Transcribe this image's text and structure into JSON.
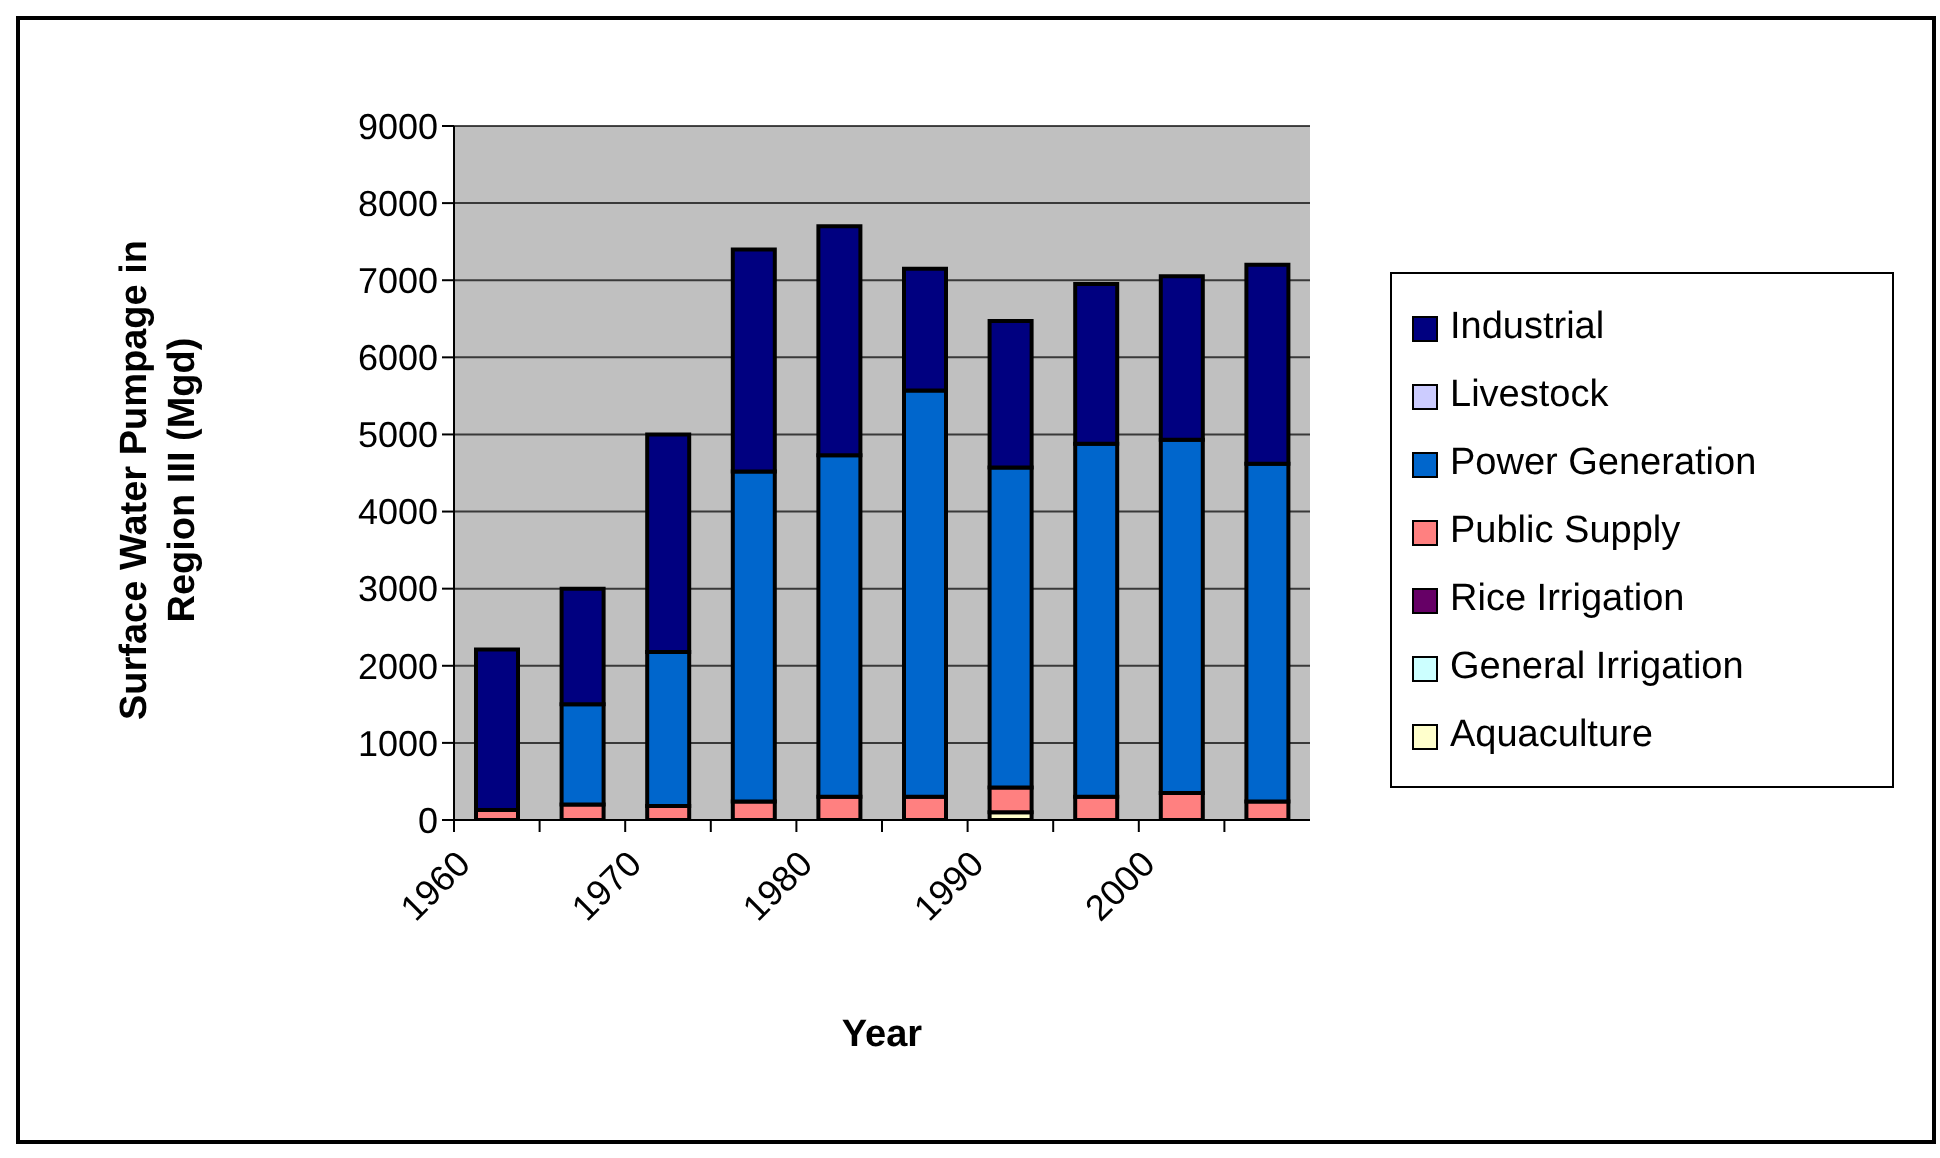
{
  "chart_data": {
    "type": "bar",
    "stacked": true,
    "xlabel": "Year",
    "ylabel": "Surface Water Pumpage in Region III (Mgd)",
    "categories": [
      "1960",
      null,
      "1970",
      null,
      "1980",
      null,
      "1990",
      null,
      "2000",
      null
    ],
    "series": [
      {
        "name": "Aquaculture",
        "color": "#ffffcc",
        "values": [
          0,
          0,
          0,
          0,
          0,
          0,
          100,
          0,
          0,
          0
        ]
      },
      {
        "name": "General Irrigation",
        "color": "#ccffff",
        "values": [
          0,
          0,
          0,
          0,
          0,
          0,
          0,
          0,
          0,
          0
        ]
      },
      {
        "name": "Rice Irrigation",
        "color": "#660066",
        "values": [
          0,
          0,
          0,
          0,
          null,
          null,
          0,
          null,
          null,
          0
        ]
      },
      {
        "name": "Public Supply",
        "color": "#ff8080",
        "values": [
          130,
          200,
          180,
          240,
          300,
          300,
          320,
          300,
          350,
          240
        ]
      },
      {
        "name": "Power Generation",
        "color": "#0066cc",
        "values": [
          0,
          1300,
          2000,
          4280,
          4430,
          5270,
          4150,
          4580,
          4580,
          4380
        ]
      },
      {
        "name": "Livestock",
        "color": "#ccccff",
        "values": [
          0,
          0,
          0,
          0,
          0,
          0,
          0,
          0,
          0,
          0
        ]
      },
      {
        "name": "Industrial",
        "color": "#000080",
        "values": [
          2080,
          1500,
          2820,
          2880,
          2970,
          1580,
          1900,
          2070,
          2120,
          2580
        ]
      }
    ],
    "ylim": [
      0,
      9000
    ],
    "yticks": [
      0,
      1000,
      2000,
      3000,
      4000,
      5000,
      6000,
      7000,
      8000,
      9000
    ],
    "grid": "y",
    "legend": "right"
  }
}
